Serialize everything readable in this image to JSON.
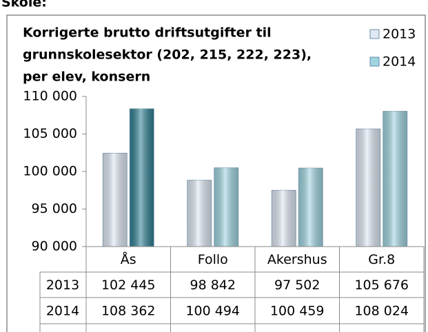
{
  "header_text": "Skole:",
  "chart_data": {
    "type": "bar",
    "title": [
      "Korrigerte brutto driftsutgifter til",
      "grunnskolesektor (202, 215, 222, 223),",
      "per elev, konsern"
    ],
    "categories": [
      "Ås",
      "Follo",
      "Akershus",
      "Gr.8"
    ],
    "series": [
      {
        "name": "2013",
        "color": "#dfe8f4",
        "values": [
          102445,
          98842,
          97502,
          105676
        ],
        "value_labels": [
          "102 445",
          "98 842",
          "97 502",
          "105 676"
        ]
      },
      {
        "name": "2014",
        "color": "#9fd4e0",
        "colors": [
          "#2f7f93",
          "#9fd4e0",
          "#9fd4e0",
          "#9fd4e0"
        ],
        "values": [
          108362,
          100494,
          100459,
          108024
        ],
        "value_labels": [
          "108 362",
          "100 494",
          "100 459",
          "108 024"
        ]
      }
    ],
    "ylim": [
      90000,
      110000
    ],
    "yticks": [
      {
        "value": 90000,
        "label": "90 000"
      },
      {
        "value": 95000,
        "label": "95 000"
      },
      {
        "value": 100000,
        "label": "100 000"
      },
      {
        "value": 105000,
        "label": "105 000"
      },
      {
        "value": 110000,
        "label": "110 000"
      }
    ],
    "legend": "top-right",
    "data_table": true
  }
}
